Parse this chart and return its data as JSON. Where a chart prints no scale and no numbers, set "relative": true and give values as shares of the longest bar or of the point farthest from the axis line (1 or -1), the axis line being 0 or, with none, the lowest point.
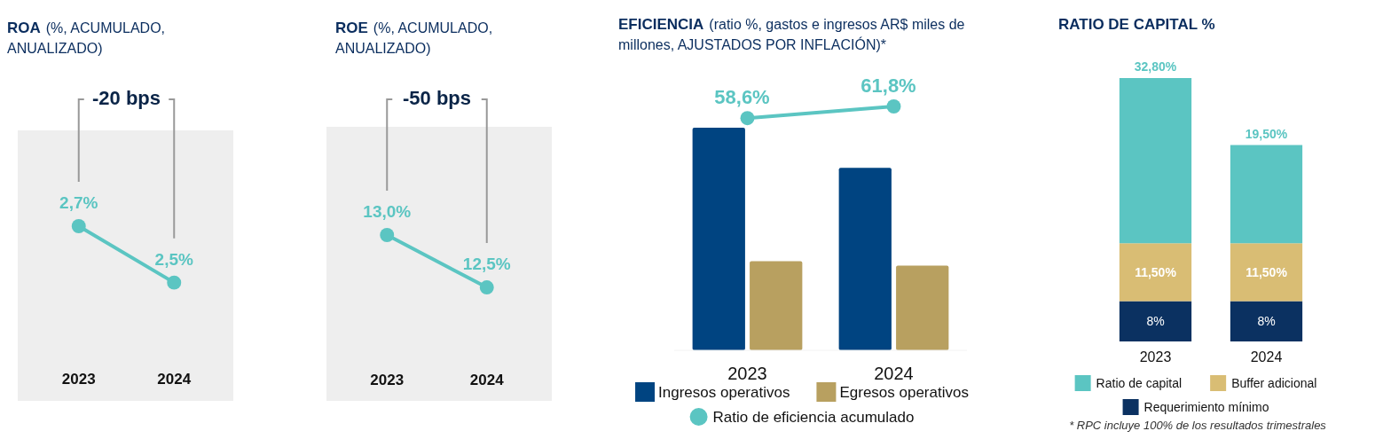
{
  "chart_data": [
    {
      "type": "line",
      "title": "ROA",
      "subtitle": "(%, ACUMULADO, ANUALIZADO)",
      "categories": [
        "2023",
        "2024"
      ],
      "marker": "circle",
      "series": [
        {
          "color": "#5bc5c2",
          "values": [
            2.7,
            2.5
          ],
          "value_labels": [
            "2,7%",
            "2,5%"
          ]
        }
      ],
      "annotations": [
        "-20 bps"
      ]
    },
    {
      "type": "line",
      "title": "ROE",
      "subtitle": "(%, ACUMULADO, ANUALIZADO)",
      "categories": [
        "2023",
        "2024"
      ],
      "marker": "circle",
      "series": [
        {
          "color": "#5bc5c2",
          "values": [
            13.0,
            12.5
          ],
          "value_labels": [
            "13,0%",
            "12,5%"
          ]
        }
      ],
      "annotations": [
        "-50 bps"
      ]
    },
    {
      "type": "bar",
      "categories": [
        "2023",
        "2024"
      ],
      "relative": true,
      "legend": "bottom",
      "series": [
        {
          "name": "Ingresos operativos",
          "color": "#004481",
          "values": [
            1,
            0.82
          ]
        },
        {
          "name": "Egresos operativos",
          "color": "#b8a060",
          "values": [
            0.4,
            0.38
          ]
        }
      ]
    },
    {
      "type": "line",
      "title": "EFICIENCIA",
      "subtitle": "(ratio %, gastos e ingresos AR$ miles de millones, AJUSTADOS POR INFLACIÓN)*",
      "categories": [
        null,
        null
      ],
      "marker": "circle",
      "legend": "bottom",
      "series": [
        {
          "name": "Ratio de eficiencia acumulado",
          "color": "#5bc5c2",
          "values": [
            58.6,
            61.8
          ],
          "value_labels": [
            "58,6%",
            "61,8%"
          ]
        }
      ]
    },
    {
      "type": "bar",
      "title": "RATIO DE CAPITAL %",
      "categories": [
        "2023",
        "2024"
      ],
      "stacked": true,
      "legend": "bottom",
      "series": [
        {
          "name": "Requerimiento mínimo",
          "color": "#0b3161",
          "values": [
            8,
            8
          ],
          "value_labels": [
            "8%",
            "8%"
          ]
        },
        {
          "name": "Buffer adicional",
          "color": "#d9bd74",
          "values": [
            11.5,
            11.5
          ],
          "value_labels": [
            "11,50%",
            "11,50%"
          ]
        },
        {
          "name": "Ratio de capital",
          "color": "#5bc5c2",
          "values": [
            32.8,
            19.5
          ],
          "value_labels": [
            "32,80%",
            "19,50%"
          ]
        }
      ],
      "annotations": [
        "* RPC incluye 100% de los resultados trimestrales"
      ]
    }
  ]
}
